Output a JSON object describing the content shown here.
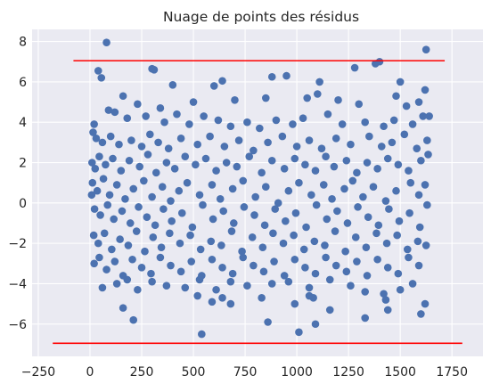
{
  "chart_data": {
    "type": "scatter",
    "title": "Nuage de points des résidus",
    "xlabel": "",
    "ylabel": "",
    "xlim": [
      -280,
      1900
    ],
    "ylim": [
      -7.6,
      8.6
    ],
    "xticks": [
      -250,
      0,
      250,
      500,
      750,
      1000,
      1250,
      1500,
      1750
    ],
    "yticks": [
      -6,
      -4,
      -2,
      0,
      2,
      4,
      6,
      8
    ],
    "xtick_labels": [
      "−250",
      "0",
      "250",
      "500",
      "750",
      "1000",
      "1250",
      "1500",
      "1750"
    ],
    "ytick_labels": [
      "−6",
      "−4",
      "−2",
      "0",
      "2",
      "4",
      "6",
      "8"
    ],
    "grid": true,
    "background_color": "#eaeaf2",
    "grid_color": "#ffffff",
    "series": [
      {
        "kind": "points",
        "color": "#4c72b0",
        "points": [
          [
            80,
            7.95
          ],
          [
            1625,
            7.6
          ],
          [
            300,
            6.65
          ],
          [
            310,
            6.6
          ],
          [
            40,
            6.55
          ],
          [
            55,
            6.2
          ],
          [
            1400,
            7.0
          ],
          [
            1380,
            6.9
          ],
          [
            1280,
            6.7
          ],
          [
            880,
            6.25
          ],
          [
            950,
            6.3
          ],
          [
            1110,
            6.0
          ],
          [
            1500,
            6.0
          ],
          [
            640,
            6.05
          ],
          [
            600,
            5.8
          ],
          [
            400,
            5.85
          ],
          [
            1480,
            5.3
          ],
          [
            1620,
            5.6
          ],
          [
            160,
            5.3
          ],
          [
            1050,
            5.2
          ],
          [
            1100,
            5.4
          ],
          [
            1200,
            5.1
          ],
          [
            1590,
            5.0
          ],
          [
            700,
            5.1
          ],
          [
            850,
            5.2
          ],
          [
            230,
            4.9
          ],
          [
            500,
            5.0
          ],
          [
            340,
            4.7
          ],
          [
            1300,
            4.9
          ],
          [
            1530,
            4.8
          ],
          [
            1640,
            4.3
          ],
          [
            20,
            3.9
          ],
          [
            90,
            4.6
          ],
          [
            120,
            4.5
          ],
          [
            180,
            4.2
          ],
          [
            270,
            4.3
          ],
          [
            360,
            4.0
          ],
          [
            420,
            4.4
          ],
          [
            480,
            3.9
          ],
          [
            550,
            4.3
          ],
          [
            620,
            4.1
          ],
          [
            680,
            3.8
          ],
          [
            760,
            4.0
          ],
          [
            820,
            3.7
          ],
          [
            900,
            4.1
          ],
          [
            980,
            3.9
          ],
          [
            1030,
            4.2
          ],
          [
            1150,
            4.4
          ],
          [
            1220,
            3.9
          ],
          [
            1330,
            4.0
          ],
          [
            1420,
            3.8
          ],
          [
            1470,
            4.1
          ],
          [
            1560,
            3.9
          ],
          [
            1610,
            4.3
          ],
          [
            15,
            3.5
          ],
          [
            30,
            3.2
          ],
          [
            60,
            3.0
          ],
          [
            100,
            3.3
          ],
          [
            140,
            2.9
          ],
          [
            200,
            3.1
          ],
          [
            250,
            2.8
          ],
          [
            290,
            3.4
          ],
          [
            330,
            3.0
          ],
          [
            380,
            2.7
          ],
          [
            440,
            3.2
          ],
          [
            520,
            2.9
          ],
          [
            580,
            3.3
          ],
          [
            650,
            2.8
          ],
          [
            720,
            3.1
          ],
          [
            790,
            2.6
          ],
          [
            860,
            3.0
          ],
          [
            930,
            3.3
          ],
          [
            1000,
            2.8
          ],
          [
            1060,
            3.1
          ],
          [
            1120,
            2.7
          ],
          [
            1190,
            3.2
          ],
          [
            1260,
            2.9
          ],
          [
            1350,
            3.3
          ],
          [
            1410,
            2.8
          ],
          [
            1460,
            3.0
          ],
          [
            1520,
            3.4
          ],
          [
            1580,
            2.7
          ],
          [
            1630,
            3.1
          ],
          [
            10,
            2.0
          ],
          [
            25,
            1.7
          ],
          [
            45,
            2.3
          ],
          [
            75,
            1.9
          ],
          [
            110,
            2.2
          ],
          [
            150,
            1.6
          ],
          [
            190,
            2.1
          ],
          [
            240,
            1.8
          ],
          [
            280,
            2.4
          ],
          [
            320,
            1.5
          ],
          [
            370,
            2.0
          ],
          [
            410,
            1.7
          ],
          [
            460,
            2.3
          ],
          [
            510,
            1.9
          ],
          [
            560,
            2.2
          ],
          [
            610,
            1.6
          ],
          [
            660,
            2.0
          ],
          [
            710,
            1.8
          ],
          [
            770,
            2.3
          ],
          [
            830,
            1.5
          ],
          [
            880,
            2.1
          ],
          [
            940,
            1.7
          ],
          [
            990,
            2.2
          ],
          [
            1040,
            1.9
          ],
          [
            1090,
            1.6
          ],
          [
            1140,
            2.3
          ],
          [
            1180,
            1.8
          ],
          [
            1240,
            2.1
          ],
          [
            1290,
            1.5
          ],
          [
            1340,
            2.0
          ],
          [
            1390,
            1.7
          ],
          [
            1440,
            2.2
          ],
          [
            1490,
            1.9
          ],
          [
            1540,
            1.6
          ],
          [
            1600,
            2.1
          ],
          [
            1635,
            2.4
          ],
          [
            12,
            1.0
          ],
          [
            35,
            0.6
          ],
          [
            65,
            1.2
          ],
          [
            95,
            0.4
          ],
          [
            130,
            0.9
          ],
          [
            170,
            0.2
          ],
          [
            210,
            0.7
          ],
          [
            260,
            1.1
          ],
          [
            300,
            0.3
          ],
          [
            350,
            0.8
          ],
          [
            390,
            0.1
          ],
          [
            430,
            0.6
          ],
          [
            470,
            1.0
          ],
          [
            530,
            0.4
          ],
          [
            590,
            0.9
          ],
          [
            630,
            0.2
          ],
          [
            690,
            0.7
          ],
          [
            740,
            1.1
          ],
          [
            800,
            0.3
          ],
          [
            850,
            0.8
          ],
          [
            910,
            0.0
          ],
          [
            960,
            0.6
          ],
          [
            1010,
            1.0
          ],
          [
            1070,
            0.4
          ],
          [
            1130,
            0.9
          ],
          [
            1170,
            0.2
          ],
          [
            1230,
            0.7
          ],
          [
            1270,
            1.1
          ],
          [
            1320,
            0.3
          ],
          [
            1370,
            0.8
          ],
          [
            1430,
            0.1
          ],
          [
            1480,
            0.6
          ],
          [
            1550,
            1.0
          ],
          [
            1590,
            0.4
          ],
          [
            1620,
            0.9
          ],
          [
            8,
            0.4
          ],
          [
            22,
            -0.3
          ],
          [
            50,
            -0.6
          ],
          [
            85,
            -0.1
          ],
          [
            115,
            -0.8
          ],
          [
            155,
            -0.4
          ],
          [
            195,
            -1.0
          ],
          [
            235,
            -0.2
          ],
          [
            275,
            -0.7
          ],
          [
            315,
            -1.1
          ],
          [
            355,
            -0.3
          ],
          [
            395,
            -0.9
          ],
          [
            445,
            -0.5
          ],
          [
            495,
            -1.2
          ],
          [
            545,
            -0.1
          ],
          [
            595,
            -0.8
          ],
          [
            645,
            -0.4
          ],
          [
            695,
            -1.0
          ],
          [
            745,
            -0.2
          ],
          [
            795,
            -0.6
          ],
          [
            845,
            -1.1
          ],
          [
            895,
            -0.3
          ],
          [
            945,
            -0.9
          ],
          [
            995,
            -0.5
          ],
          [
            1045,
            -1.2
          ],
          [
            1095,
            -0.1
          ],
          [
            1145,
            -0.8
          ],
          [
            1195,
            -0.4
          ],
          [
            1245,
            -1.0
          ],
          [
            1295,
            -0.2
          ],
          [
            1345,
            -0.7
          ],
          [
            1395,
            -1.1
          ],
          [
            1445,
            -0.3
          ],
          [
            1495,
            -0.9
          ],
          [
            1545,
            -0.5
          ],
          [
            1595,
            -1.2
          ],
          [
            1630,
            -0.1
          ],
          [
            18,
            -1.6
          ],
          [
            40,
            -2.0
          ],
          [
            70,
            -1.5
          ],
          [
            105,
            -2.3
          ],
          [
            145,
            -1.8
          ],
          [
            185,
            -2.1
          ],
          [
            225,
            -1.4
          ],
          [
            265,
            -2.4
          ],
          [
            305,
            -1.7
          ],
          [
            345,
            -2.2
          ],
          [
            385,
            -1.5
          ],
          [
            435,
            -2.0
          ],
          [
            485,
            -1.6
          ],
          [
            535,
            -2.3
          ],
          [
            585,
            -1.9
          ],
          [
            635,
            -2.1
          ],
          [
            685,
            -1.4
          ],
          [
            735,
            -2.4
          ],
          [
            785,
            -1.7
          ],
          [
            835,
            -2.2
          ],
          [
            885,
            -1.5
          ],
          [
            935,
            -2.0
          ],
          [
            985,
            -1.6
          ],
          [
            1035,
            -2.3
          ],
          [
            1085,
            -1.9
          ],
          [
            1135,
            -2.1
          ],
          [
            1185,
            -1.4
          ],
          [
            1235,
            -2.4
          ],
          [
            1285,
            -1.7
          ],
          [
            1335,
            -2.2
          ],
          [
            1385,
            -1.5
          ],
          [
            1435,
            -2.0
          ],
          [
            1485,
            -1.6
          ],
          [
            1535,
            -2.3
          ],
          [
            1585,
            -1.9
          ],
          [
            1625,
            -2.1
          ],
          [
            20,
            -3.0
          ],
          [
            45,
            -2.7
          ],
          [
            80,
            -3.3
          ],
          [
            120,
            -2.9
          ],
          [
            160,
            -3.6
          ],
          [
            205,
            -2.8
          ],
          [
            250,
            -3.2
          ],
          [
            295,
            -3.5
          ],
          [
            340,
            -2.7
          ],
          [
            390,
            -3.1
          ],
          [
            440,
            -3.4
          ],
          [
            490,
            -2.9
          ],
          [
            540,
            -3.6
          ],
          [
            590,
            -2.8
          ],
          [
            640,
            -3.2
          ],
          [
            690,
            -3.5
          ],
          [
            740,
            -2.7
          ],
          [
            790,
            -3.1
          ],
          [
            840,
            -3.4
          ],
          [
            890,
            -2.9
          ],
          [
            940,
            -3.6
          ],
          [
            990,
            -2.8
          ],
          [
            1040,
            -3.2
          ],
          [
            1090,
            -3.5
          ],
          [
            1140,
            -2.7
          ],
          [
            1190,
            -3.1
          ],
          [
            1240,
            -3.4
          ],
          [
            1290,
            -2.9
          ],
          [
            1340,
            -3.6
          ],
          [
            1390,
            -2.8
          ],
          [
            1440,
            -3.2
          ],
          [
            1490,
            -3.5
          ],
          [
            1540,
            -2.7
          ],
          [
            1590,
            -3.1
          ],
          [
            60,
            -4.2
          ],
          [
            130,
            -4.0
          ],
          [
            180,
            -3.8
          ],
          [
            230,
            -4.3
          ],
          [
            300,
            -3.9
          ],
          [
            370,
            -4.1
          ],
          [
            460,
            -4.2
          ],
          [
            530,
            -3.8
          ],
          [
            610,
            -4.3
          ],
          [
            680,
            -3.9
          ],
          [
            760,
            -4.1
          ],
          [
            880,
            -4.0
          ],
          [
            960,
            -3.9
          ],
          [
            1060,
            -4.2
          ],
          [
            1160,
            -3.8
          ],
          [
            1260,
            -4.1
          ],
          [
            1330,
            -4.4
          ],
          [
            1420,
            -4.5
          ],
          [
            1500,
            -4.3
          ],
          [
            1560,
            -4.0
          ],
          [
            160,
            -5.2
          ],
          [
            210,
            -5.8
          ],
          [
            520,
            -4.6
          ],
          [
            540,
            -6.5
          ],
          [
            640,
            -4.7
          ],
          [
            680,
            -5.0
          ],
          [
            830,
            -4.7
          ],
          [
            860,
            -5.9
          ],
          [
            990,
            -5.0
          ],
          [
            1010,
            -6.4
          ],
          [
            1060,
            -4.6
          ],
          [
            1090,
            -6.0
          ],
          [
            1160,
            -5.3
          ],
          [
            1330,
            -5.7
          ],
          [
            1440,
            -5.3
          ],
          [
            1620,
            -5.0
          ],
          [
            1600,
            -5.5
          ],
          [
            590,
            -4.9
          ],
          [
            1080,
            -4.7
          ],
          [
            1430,
            -4.8
          ]
        ]
      },
      {
        "kind": "line",
        "color": "#ff0000",
        "points": [
          [
            -80,
            7.05
          ],
          [
            1715,
            7.05
          ]
        ]
      },
      {
        "kind": "line",
        "color": "#ff0000",
        "points": [
          [
            -180,
            -6.95
          ],
          [
            1800,
            -6.95
          ]
        ]
      }
    ]
  }
}
